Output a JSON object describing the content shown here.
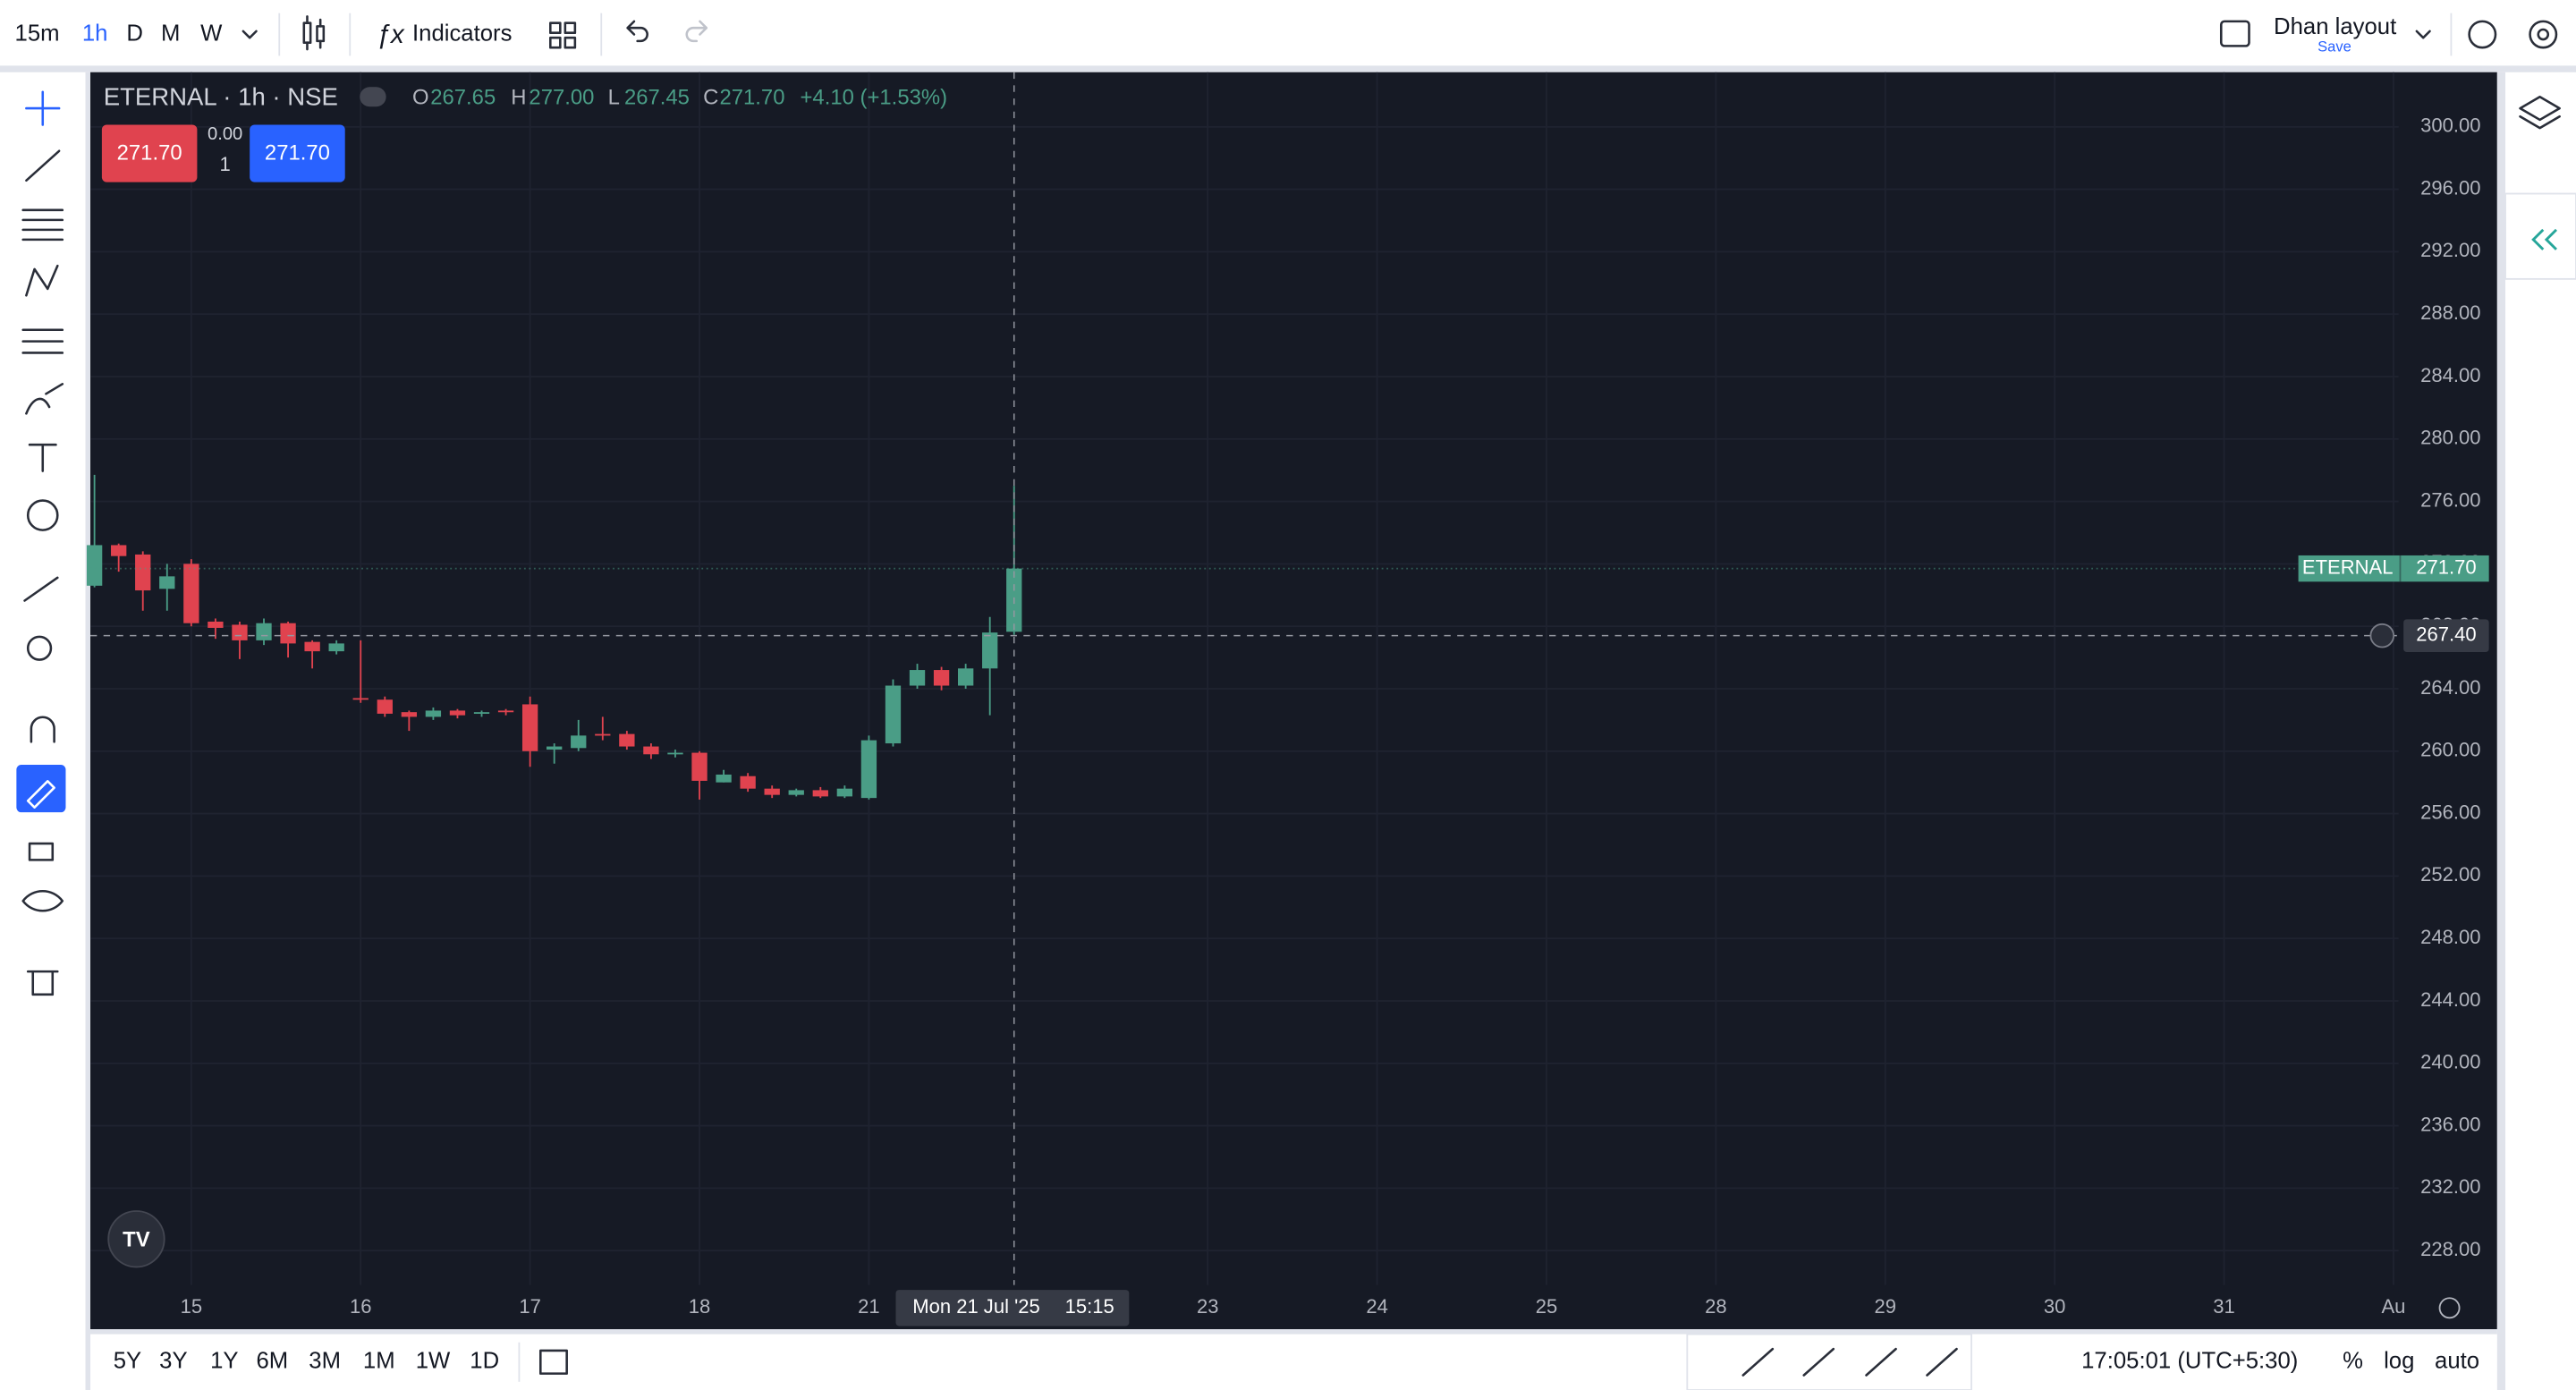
{
  "toolbar": {
    "intervals": [
      "15m",
      "1h",
      "D",
      "M",
      "W"
    ],
    "indicators": "Indicators",
    "layout": "Dhan layout",
    "save": "Save"
  },
  "bottom_bar": {
    "ranges": [
      "5Y",
      "3Y",
      "1Y",
      "6M",
      "3M",
      "1M",
      "1W",
      "1D"
    ],
    "clock": "17:05:01 (UTC+5:30)",
    "percent": "%",
    "log": "log",
    "auto": "auto"
  },
  "legend": {
    "symbol": "ETERNAL · 1h · NSE",
    "o_label": "O",
    "open": "267.65",
    "h_label": "H",
    "high": "277.00",
    "l_label": "L",
    "low": "267.45",
    "c_label": "C",
    "close": "271.70",
    "change": "+4.10 (+1.53%)"
  },
  "trade": {
    "sell": "271.70",
    "spread": "0.00",
    "qty": "1",
    "buy": "271.70"
  },
  "chart_data": {
    "type": "candlestick",
    "up_color": "#4a9d86",
    "down_color": "#e0434f",
    "candles": {
      "open": [
        270.6,
        273.2,
        272.6,
        270.4,
        272.0,
        268.3,
        268.1,
        267.1,
        268.2,
        267.0,
        266.4,
        263.4,
        263.3,
        262.5,
        262.2,
        262.6,
        262.4,
        262.6,
        263.0,
        260.1,
        260.2,
        261.1,
        261.1,
        260.3,
        259.8,
        259.9,
        258.0,
        258.4,
        257.6,
        257.2,
        257.5,
        257.1,
        257.0,
        260.5,
        264.2,
        265.2,
        264.2,
        265.3,
        267.65
      ],
      "high": [
        277.7,
        273.3,
        272.8,
        272.0,
        272.3,
        268.5,
        268.3,
        268.5,
        268.3,
        267.1,
        267.1,
        267.1,
        263.5,
        262.6,
        262.8,
        262.7,
        262.6,
        262.7,
        263.5,
        260.5,
        262.0,
        262.2,
        261.3,
        260.5,
        260.1,
        260.0,
        258.8,
        258.6,
        257.8,
        257.6,
        257.7,
        257.8,
        261.0,
        264.6,
        265.6,
        265.4,
        265.6,
        268.6,
        277.0
      ],
      "low": [
        270.5,
        271.5,
        269.0,
        269.0,
        268.0,
        267.2,
        265.9,
        266.8,
        266.0,
        265.3,
        266.2,
        263.1,
        262.2,
        261.3,
        262.0,
        262.1,
        262.2,
        262.3,
        259.0,
        259.2,
        260.0,
        260.7,
        260.1,
        259.5,
        259.6,
        256.9,
        258.0,
        257.4,
        257.0,
        257.1,
        257.0,
        257.0,
        256.9,
        260.3,
        264.0,
        263.9,
        264.0,
        262.3,
        267.45
      ],
      "close": [
        273.2,
        272.5,
        270.3,
        271.2,
        268.2,
        267.9,
        267.1,
        268.2,
        266.9,
        266.4,
        266.9,
        263.3,
        262.4,
        262.2,
        262.6,
        262.3,
        262.5,
        262.5,
        260.0,
        260.3,
        261.0,
        261.0,
        260.3,
        259.8,
        259.9,
        258.1,
        258.5,
        257.6,
        257.2,
        257.5,
        257.1,
        257.6,
        260.7,
        264.2,
        265.2,
        264.2,
        265.3,
        267.6,
        271.7
      ]
    },
    "xlim": [
      -0.17,
      95.21
    ],
    "xticks": [
      {
        "value": 4,
        "label": "15"
      },
      {
        "value": 11,
        "label": "16"
      },
      {
        "value": 18,
        "label": "17"
      },
      {
        "value": 25,
        "label": "18"
      },
      {
        "value": 32,
        "label": "21"
      },
      {
        "value": 46,
        "label": "23"
      },
      {
        "value": 53,
        "label": "24"
      },
      {
        "value": 60,
        "label": "25"
      },
      {
        "value": 67,
        "label": "28"
      },
      {
        "value": 74,
        "label": "29"
      },
      {
        "value": 81,
        "label": "30"
      },
      {
        "value": 88,
        "label": "31"
      },
      {
        "value": 95,
        "label": "Au"
      }
    ],
    "ylim": [
      225.8,
      303.5
    ],
    "yticks": [
      {
        "value": 228,
        "label": "228.00"
      },
      {
        "value": 232,
        "label": "232.00"
      },
      {
        "value": 236,
        "label": "236.00"
      },
      {
        "value": 240,
        "label": "240.00"
      },
      {
        "value": 244,
        "label": "244.00"
      },
      {
        "value": 248,
        "label": "248.00"
      },
      {
        "value": 252,
        "label": "252.00"
      },
      {
        "value": 256,
        "label": "256.00"
      },
      {
        "value": 260,
        "label": "260.00"
      },
      {
        "value": 264,
        "label": "264.00"
      },
      {
        "value": 268,
        "label": "268.00"
      },
      {
        "value": 272,
        "label": "272.00"
      },
      {
        "value": 276,
        "label": "276.00"
      },
      {
        "value": 280,
        "label": "280.00"
      },
      {
        "value": 284,
        "label": "284.00"
      },
      {
        "value": 288,
        "label": "288.00"
      },
      {
        "value": 292,
        "label": "292.00"
      },
      {
        "value": 296,
        "label": "296.00"
      },
      {
        "value": 300,
        "label": "300.00"
      }
    ],
    "grid": true,
    "last_price": {
      "name": "ETERNAL",
      "value": 271.7,
      "label": "271.70"
    },
    "crosshair": {
      "index": 38,
      "price": {
        "value": 267.4,
        "label": "267.40"
      },
      "date": "Mon 21 Jul '25",
      "time": "15:15"
    }
  }
}
